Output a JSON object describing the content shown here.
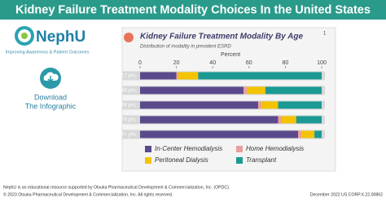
{
  "header": {
    "title": "Kidney Failure Treatment Modality Choices In the United States"
  },
  "logo": {
    "name": "NephU",
    "tagline": "Improving Awareness & Patient Outcomes"
  },
  "download": {
    "label_line1": "Download",
    "label_line2": "The Infographic"
  },
  "chart_data": {
    "type": "stacked-bar-horizontal",
    "title": "Kidney Failure Treatment Modality By Age",
    "title_footnote": "1",
    "subtitle": "Distribution of modality in prevalent ESRD",
    "x_label": "Percent",
    "categories": [
      "0-17 yrs.",
      "18-44 yrs.",
      "45-64 yrs.",
      "65-74 yrs.",
      "75+ yrs."
    ],
    "series": [
      {
        "name": "In-Center Hemodialysis",
        "color": "#5a4a8c",
        "values": [
          20,
          57,
          65,
          76,
          87
        ]
      },
      {
        "name": "Home Hemodialysis",
        "color": "#e9a09c",
        "values": [
          1,
          2,
          2,
          2,
          2
        ]
      },
      {
        "name": "Peritoneal Dialysis",
        "color": "#f4c300",
        "values": [
          11,
          10,
          9,
          8,
          7
        ]
      },
      {
        "name": "Transplant",
        "color": "#1b9a94",
        "values": [
          68,
          31,
          24,
          14,
          4
        ]
      }
    ],
    "xlim": [
      0,
      100
    ],
    "xticks": [
      0,
      20,
      40,
      60,
      80,
      100
    ]
  },
  "footer": {
    "line1": "NephU is an educational resource supported by Otsuka Pharmaceutical Development & Commercialization, Inc. (OPDC).",
    "line2": "© 2023 Otsuka Pharmaceutical Development & Commercialization, Inc. All rights reserved.",
    "code": "December 2022 US.CORP.X.22.00862"
  }
}
